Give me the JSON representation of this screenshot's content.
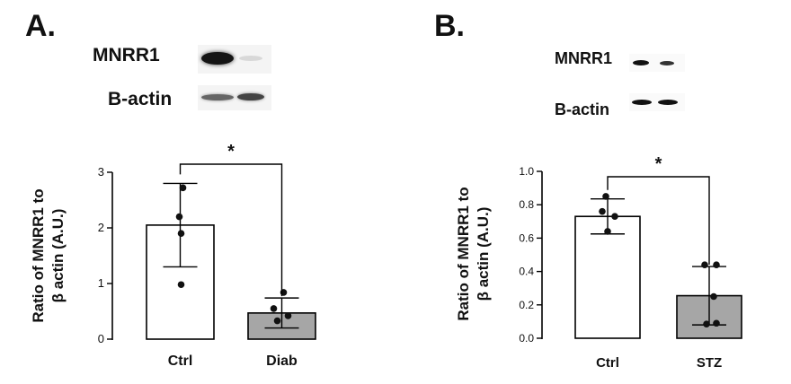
{
  "panels": [
    {
      "letter": "A.",
      "blot": {
        "protein_label": "MNRR1",
        "control_label": "B-actin"
      },
      "chart_data": {
        "type": "bar",
        "categories": [
          "Ctrl",
          "Diab"
        ],
        "values": [
          2.05,
          0.47
        ],
        "error": [
          0.75,
          0.27
        ],
        "points": [
          [
            2.72,
            2.2,
            1.9,
            0.98
          ],
          [
            0.84,
            0.55,
            0.42,
            0.33
          ]
        ],
        "bar_colors": [
          "#ffffff",
          "#a6a6a6"
        ],
        "ylabel": "Ratio of MNRR1 to β actin  (A.U.)",
        "ylim": [
          0,
          3
        ],
        "yticks": [
          "0",
          "1",
          "2",
          "3"
        ],
        "significance": "*"
      }
    },
    {
      "letter": "B.",
      "blot": {
        "protein_label": "MNRR1",
        "control_label": "B-actin"
      },
      "chart_data": {
        "type": "bar",
        "categories": [
          "Ctrl",
          "STZ"
        ],
        "values": [
          0.73,
          0.255
        ],
        "error": [
          0.105,
          0.175
        ],
        "points": [
          [
            0.85,
            0.76,
            0.73,
            0.64
          ],
          [
            0.44,
            0.44,
            0.25,
            0.09,
            0.085
          ]
        ],
        "bar_colors": [
          "#ffffff",
          "#a6a6a6"
        ],
        "ylabel": "Ratio of MNRR1 to β actin  (A.U.)",
        "ylim": [
          0,
          1.0
        ],
        "yticks": [
          "0.0",
          "0.2",
          "0.4",
          "0.6",
          "0.8",
          "1.0"
        ],
        "significance": "*"
      }
    }
  ]
}
